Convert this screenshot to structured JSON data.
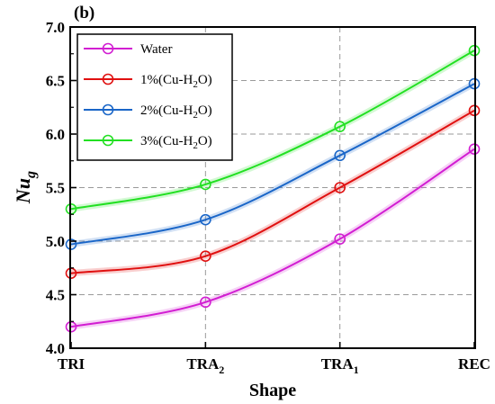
{
  "chart_data": {
    "type": "line",
    "panel_label": "(b)",
    "xlabel": "Shape",
    "ylabel": "Nu",
    "ylabel_sub": "g",
    "ylim": [
      4.0,
      7.0
    ],
    "y_ticks": [
      4.0,
      4.5,
      5.0,
      5.5,
      6.0,
      6.5,
      7.0
    ],
    "y_tick_labels": [
      "4.0",
      "4.5",
      "5.0",
      "5.5",
      "6.0",
      "6.5",
      "7.0"
    ],
    "categories": [
      {
        "main": "TRI",
        "sub": ""
      },
      {
        "main": "TRA",
        "sub": "2"
      },
      {
        "main": "TRA",
        "sub": "1"
      },
      {
        "main": "REC",
        "sub": ""
      }
    ],
    "grid": "dashed",
    "legend_position": "top-left",
    "series": [
      {
        "name": "Water",
        "name_main": "Water",
        "name_sub": "",
        "name_suffix": "",
        "color": "#d21ed2",
        "values": [
          4.2,
          4.43,
          5.02,
          5.86
        ]
      },
      {
        "name": "1%(Cu-H2O)",
        "name_main": "1%(Cu-H",
        "name_sub": "2",
        "name_suffix": "O)",
        "color": "#e01010",
        "values": [
          4.7,
          4.86,
          5.5,
          6.22
        ]
      },
      {
        "name": "2%(Cu-H2O)",
        "name_main": "2%(Cu-H",
        "name_sub": "2",
        "name_suffix": "O)",
        "color": "#1a66c8",
        "values": [
          4.97,
          5.2,
          5.8,
          6.47
        ]
      },
      {
        "name": "3%(Cu-H2O)",
        "name_main": "3%(Cu-H",
        "name_sub": "2",
        "name_suffix": "O)",
        "color": "#22e022",
        "values": [
          5.3,
          5.53,
          6.07,
          6.78
        ]
      }
    ]
  }
}
